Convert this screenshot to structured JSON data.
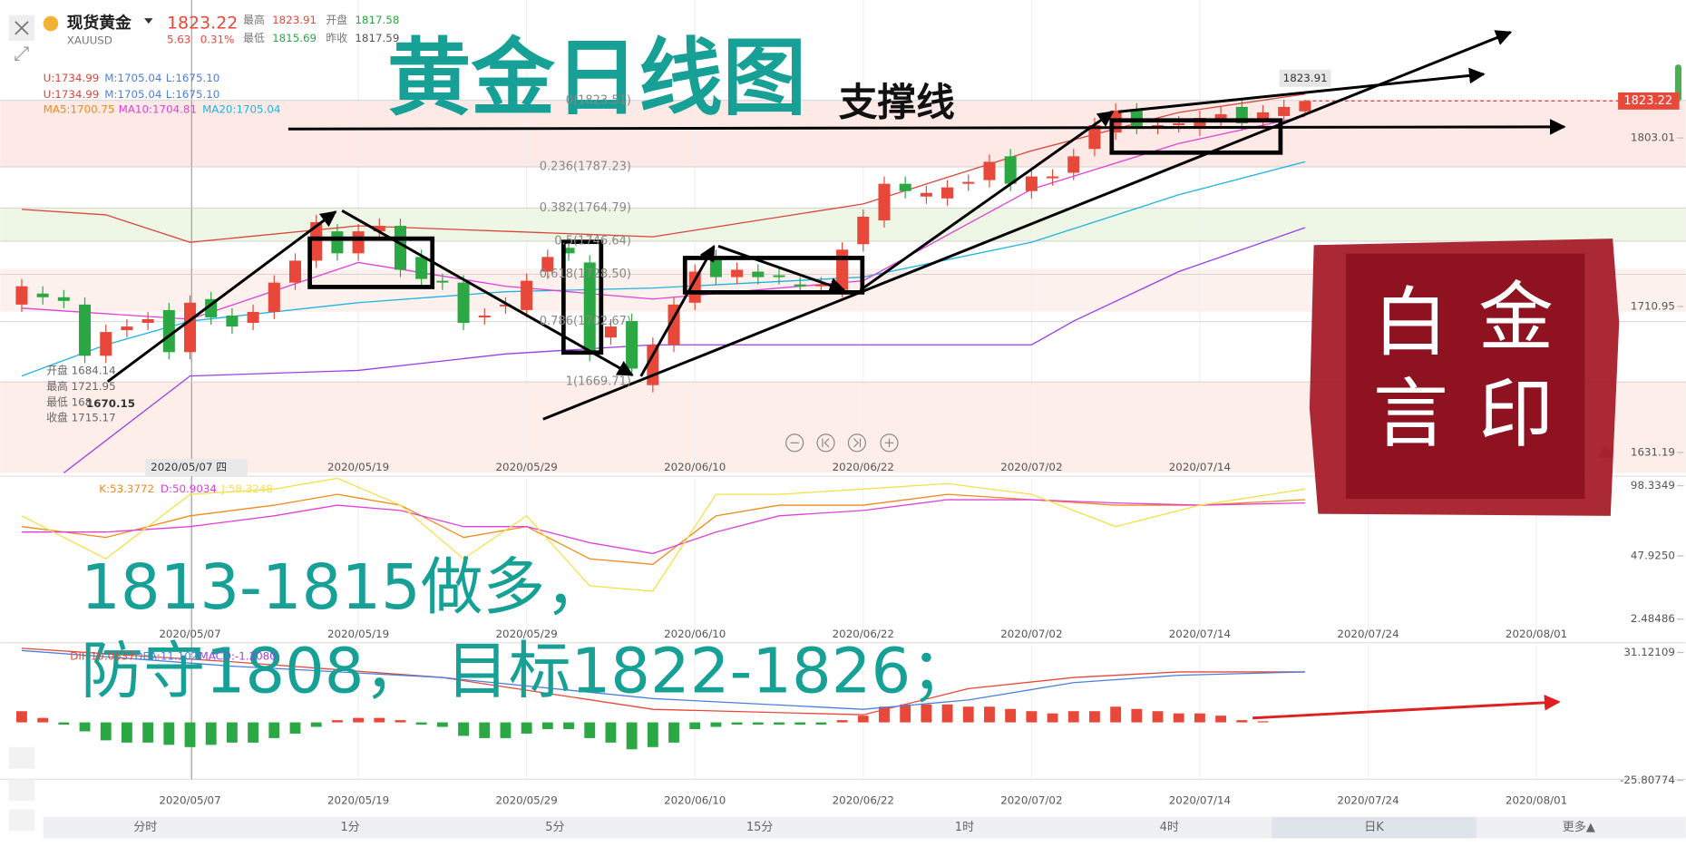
{
  "header": {
    "name": "现货黄金",
    "symbol": "XAUUSD",
    "price": "1823.22",
    "change": "5.63",
    "change_pct": "0.31%",
    "high_label": "最高",
    "high": "1823.91",
    "open_label": "开盘",
    "open": "1817.58",
    "low_label": "最低",
    "low": "1815.69",
    "prev_label": "昨收",
    "prev": "1817.59"
  },
  "legend": {
    "boll_rows": [
      [
        "U:1734.99",
        "M:1705.04",
        "L:1675.10"
      ],
      [
        "U:1734.99",
        "M:1705.04",
        "L:1675.10"
      ]
    ],
    "ma": [
      "MA5:1700.75",
      "MA10:1704.81",
      "MA20:1705.04"
    ],
    "kdj": [
      "K:53.3772",
      "D:50.9034",
      "J:58.3248"
    ],
    "macd": [
      "DIF:10.0637",
      "DEA:11.102",
      "MACD:-1.2080"
    ]
  },
  "info_box": [
    "开盘 1684.14",
    "最高 1721.95",
    "最低 168",
    "收盘 1715.17"
  ],
  "low_marker": "1670.15",
  "crosshair_date": "2020/05/07 四",
  "annotations": {
    "title": "黄金日线图",
    "support": "支撑线",
    "plan_line1": "1813-1815做多，",
    "plan_line2": "防守1808， 目标1822-1826；",
    "seal": [
      "金",
      "印",
      "白",
      "言"
    ]
  },
  "tabs": [
    "分时",
    "1分",
    "5分",
    "15分",
    "1时",
    "4时",
    "日K",
    "更多▲"
  ],
  "active_tab": 6,
  "chart_data": [
    {
      "type": "candlestick",
      "up_color": "#e8483a",
      "down_color": "#2ba744",
      "open": [
        1712,
        1718,
        1716,
        1712,
        1684,
        1698,
        1702,
        1709,
        1686,
        1715,
        1706,
        1702,
        1708,
        1724,
        1736,
        1752,
        1740,
        1752,
        1755,
        1738,
        1725,
        1724,
        1705,
        1711,
        1709,
        1730,
        1743,
        1735,
        1694,
        1703,
        1668,
        1690,
        1713,
        1738,
        1727,
        1730,
        1728,
        1723,
        1722,
        1720,
        1745,
        1758,
        1778,
        1771,
        1770,
        1778,
        1780,
        1793,
        1774,
        1781,
        1784,
        1797,
        1806,
        1818,
        1809,
        1810,
        1808,
        1813,
        1820,
        1812,
        1815,
        1817.58
      ],
      "high": [
        1726,
        1722,
        1720,
        1716,
        1701,
        1704,
        1708,
        1713,
        1717,
        1719,
        1710,
        1712,
        1728,
        1740,
        1761,
        1756,
        1756,
        1759,
        1759,
        1742,
        1729,
        1728,
        1710,
        1716,
        1729,
        1742,
        1747,
        1739,
        1704,
        1707,
        1694,
        1716,
        1734,
        1742,
        1735,
        1734,
        1732,
        1727,
        1727,
        1746,
        1764,
        1782,
        1782,
        1777,
        1780,
        1783,
        1794,
        1797,
        1786,
        1786,
        1797,
        1814,
        1822,
        1822,
        1814,
        1815,
        1818,
        1820,
        1824,
        1821,
        1824,
        1823.91
      ],
      "low": [
        1708,
        1712,
        1710,
        1680,
        1680,
        1694,
        1698,
        1682,
        1682,
        1701,
        1696,
        1698,
        1704,
        1720,
        1732,
        1736,
        1736,
        1748,
        1727,
        1722,
        1720,
        1698,
        1701,
        1707,
        1705,
        1726,
        1736,
        1681,
        1690,
        1673,
        1664,
        1686,
        1709,
        1723,
        1723,
        1723,
        1723,
        1718,
        1718,
        1716,
        1741,
        1754,
        1770,
        1767,
        1766,
        1774,
        1776,
        1774,
        1770,
        1777,
        1780,
        1793,
        1802,
        1805,
        1805,
        1806,
        1804,
        1809,
        1807,
        1808,
        1811,
        1815.69
      ],
      "close": [
        1722,
        1716,
        1714,
        1684,
        1697,
        1700,
        1704,
        1686,
        1713,
        1705,
        1700,
        1708,
        1724,
        1736,
        1757,
        1740,
        1752,
        1755,
        1731,
        1726,
        1724,
        1702,
        1706,
        1712,
        1725,
        1738,
        1740,
        1685,
        1700,
        1677,
        1690,
        1712,
        1730,
        1727,
        1731,
        1727,
        1727,
        1722,
        1723,
        1742,
        1760,
        1778,
        1774,
        1773,
        1776,
        1779,
        1790,
        1778,
        1782,
        1782,
        1793,
        1810,
        1818,
        1809,
        1810,
        1811,
        1814,
        1816,
        1811,
        1817,
        1820,
        1823.22
      ],
      "lines": [
        {
          "color": "#d9473b",
          "x": [
            0,
            4,
            8,
            16,
            23,
            30,
            40,
            48,
            55,
            61
          ],
          "values": [
            1764,
            1761,
            1746,
            1755,
            1752,
            1749,
            1767,
            1796,
            1817,
            1827
          ]
        },
        {
          "color": "#9b3ee8",
          "x": [
            2,
            8,
            16,
            23,
            30,
            40,
            48,
            50,
            55,
            61
          ],
          "values": [
            1620,
            1673,
            1676,
            1685,
            1690,
            1690,
            1690,
            1703,
            1730,
            1754
          ]
        },
        {
          "color": "#1fb3e0",
          "x": [
            0,
            4,
            8,
            16,
            23,
            30,
            40,
            48,
            55,
            61
          ],
          "values": [
            1673,
            1690,
            1703,
            1713,
            1719,
            1721,
            1727,
            1746,
            1772,
            1790
          ]
        },
        {
          "color": "#e040d8",
          "x": [
            0,
            8,
            16,
            23,
            30,
            40,
            48,
            55,
            61
          ],
          "values": [
            1710,
            1704,
            1735,
            1722,
            1715,
            1725,
            1775,
            1800,
            1815
          ]
        }
      ],
      "fib": [
        {
          "value": 1823.51,
          "label": "0(1823.51)"
        },
        {
          "value": 1787.23,
          "label": "0.236(1787.23)"
        },
        {
          "value": 1764.79,
          "label": "0.382(1764.79)"
        },
        {
          "value": 1746.64,
          "label": "0.5(1746.64)"
        },
        {
          "value": 1728.5,
          "label": "0.618(1728.50)"
        },
        {
          "value": 1702.67,
          "label": "0.786(1702.67)"
        },
        {
          "value": 1669.71,
          "label": "1(1669.71)"
        }
      ],
      "last_price": 1823.22,
      "high_marker": 1823.91,
      "ylim": [
        1620,
        1878.4
      ],
      "yticks": [
        1803.01,
        1710.95,
        1631.19
      ],
      "xticks": [
        {
          "value": 16,
          "label": "2020/05/19"
        },
        {
          "value": 24,
          "label": "2020/05/29"
        },
        {
          "value": 32,
          "label": "2020/06/10"
        },
        {
          "value": 40,
          "label": "2020/06/22"
        },
        {
          "value": 48,
          "label": "2020/07/02"
        },
        {
          "value": 56,
          "label": "2020/07/14"
        }
      ]
    },
    {
      "type": "line",
      "series": [
        {
          "color": "#f08a1c",
          "x": [
            0,
            4,
            8,
            12,
            15,
            18,
            21,
            24,
            27,
            30,
            33,
            36,
            40,
            44,
            48,
            52,
            56,
            61
          ],
          "values": [
            69.0,
            61.2,
            76.7,
            84.4,
            92.2,
            84.4,
            61.2,
            69.0,
            45.8,
            41.9,
            76.7,
            84.4,
            84.4,
            92.2,
            88.3,
            84.4,
            84.4,
            88.3
          ]
        },
        {
          "color": "#e040d8",
          "x": [
            0,
            4,
            8,
            12,
            15,
            18,
            21,
            24,
            27,
            30,
            33,
            36,
            40,
            44,
            48,
            52,
            56,
            61
          ],
          "values": [
            65.1,
            65.1,
            69.0,
            76.7,
            84.4,
            80.6,
            69.0,
            69.0,
            57.4,
            49.6,
            65.1,
            76.7,
            80.6,
            88.3,
            88.3,
            86.0,
            84.4,
            86.0
          ]
        },
        {
          "color": "#f5e04a",
          "x": [
            0,
            4,
            8,
            12,
            15,
            18,
            21,
            24,
            27,
            30,
            33,
            36,
            40,
            44,
            48,
            52,
            56,
            61
          ],
          "values": [
            76.7,
            45.8,
            92.2,
            96.0,
            103.7,
            84.4,
            45.8,
            76.7,
            26.4,
            22.6,
            92.2,
            92.2,
            96.0,
            99.9,
            92.2,
            69.0,
            84.4,
            96.0
          ]
        }
      ],
      "ylim": [
        -12.2,
        103.7
      ],
      "yticks": [
        98.3349,
        {
          "value": 47.925,
          "label": "47.9250"
        },
        2.48486
      ],
      "xticks": [
        {
          "value": 8,
          "label": "2020/05/07"
        },
        {
          "value": 16,
          "label": "2020/05/19"
        },
        {
          "value": 24,
          "label": "2020/05/29"
        },
        {
          "value": 32,
          "label": "2020/06/10"
        },
        {
          "value": 40,
          "label": "2020/06/22"
        },
        {
          "value": 48,
          "label": "2020/07/02"
        },
        {
          "value": 56,
          "label": "2020/07/14"
        },
        {
          "value": 64,
          "label": "2020/07/24"
        },
        {
          "value": 72,
          "label": "2020/08/01"
        }
      ]
    },
    {
      "type": "macd",
      "up_color": "#e8483a",
      "down_color": "#2ba744",
      "histogram": [
        5,
        2,
        -1,
        -4,
        -8,
        -9,
        -9,
        -10,
        -11,
        -10,
        -9,
        -9,
        -7,
        -5,
        -2,
        1,
        2,
        2,
        1,
        -1,
        -2,
        -6,
        -7,
        -7,
        -5,
        -3,
        -3,
        -7,
        -9,
        -12,
        -11,
        -9,
        -3,
        -2,
        -1,
        -1,
        -1,
        -1,
        -1,
        1,
        3,
        7,
        8,
        8,
        8,
        7,
        7,
        6,
        5,
        4,
        5,
        5,
        7,
        6,
        5,
        4,
        4,
        3,
        1,
        0.5
      ],
      "series": [
        {
          "color": "#e8483a",
          "x": [
            0,
            10,
            20,
            30,
            40,
            45,
            50,
            55,
            61
          ],
          "values": [
            33,
            27,
            20,
            5.8,
            3.4,
            15,
            20,
            22.5,
            22.5
          ]
        },
        {
          "color": "#4a7fe0",
          "x": [
            0,
            10,
            20,
            30,
            40,
            45,
            50,
            55,
            61
          ],
          "values": [
            32,
            25,
            20,
            10.6,
            5.8,
            10,
            17.7,
            21,
            22.5
          ]
        }
      ],
      "ylim": [
        -26.3,
        34.5
      ],
      "yticks": [
        31.12109,
        -25.80774
      ],
      "xticks": [
        {
          "value": 8,
          "label": "2020/05/07"
        },
        {
          "value": 16,
          "label": "2020/05/19"
        },
        {
          "value": 24,
          "label": "2020/05/29"
        },
        {
          "value": 32,
          "label": "2020/06/10"
        },
        {
          "value": 40,
          "label": "2020/06/22"
        },
        {
          "value": 48,
          "label": "2020/07/02"
        },
        {
          "value": 56,
          "label": "2020/07/14"
        },
        {
          "value": 64,
          "label": "2020/07/24"
        },
        {
          "value": 72,
          "label": "2020/08/01"
        }
      ]
    }
  ]
}
